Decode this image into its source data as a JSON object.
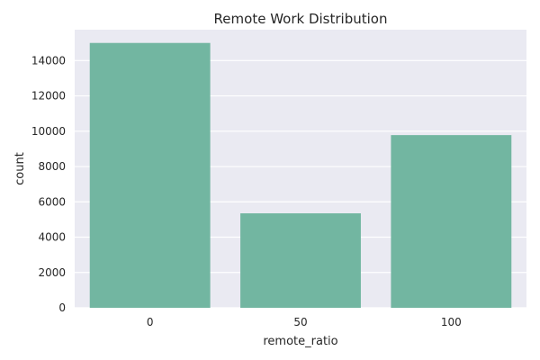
{
  "chart_data": {
    "type": "bar",
    "title": "Remote Work Distribution",
    "xlabel": "remote_ratio",
    "ylabel": "count",
    "categories": [
      "0",
      "50",
      "100"
    ],
    "values": [
      15000,
      5350,
      9780
    ],
    "ylim": [
      0,
      15750
    ],
    "yticks": [
      0,
      2000,
      4000,
      6000,
      8000,
      10000,
      12000,
      14000
    ],
    "grid": true,
    "bar_color": "#72b6a1",
    "plot_background": "#eaeaf2"
  }
}
